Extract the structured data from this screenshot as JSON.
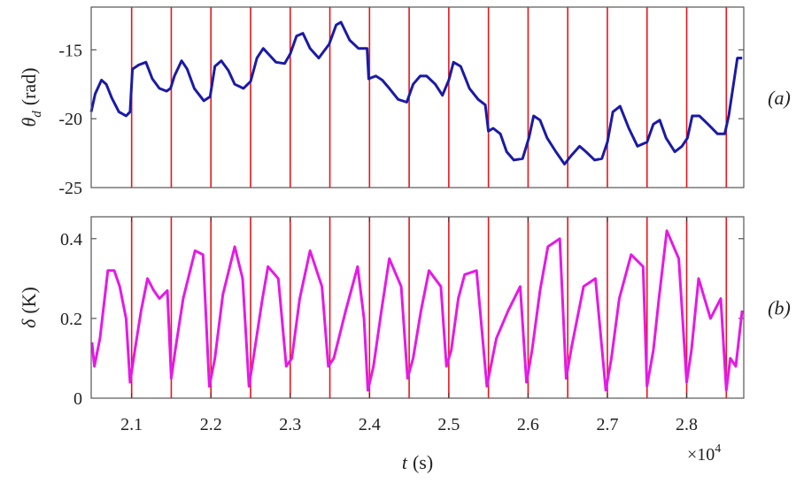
{
  "chart_data": [
    {
      "type": "line",
      "ylabel": {
        "symbol": "θ",
        "subscript": "d",
        "unit": "(rad)"
      },
      "panel_label": "(a)",
      "xlim": [
        2.049,
        2.872
      ],
      "ylim": [
        -25,
        -11.9
      ],
      "yticks": [
        -25,
        -20,
        -15
      ],
      "vlines": {
        "color": "#e8151b",
        "x": [
          2.1,
          2.15,
          2.2,
          2.25,
          2.3,
          2.35,
          2.4,
          2.45,
          2.5,
          2.55,
          2.6,
          2.65,
          2.7,
          2.75,
          2.8,
          2.85
        ]
      },
      "series": [
        {
          "color": "#1a1aa8",
          "x": [
            2.049,
            2.054,
            2.062,
            2.068,
            2.075,
            2.084,
            2.093,
            2.098,
            2.101,
            2.109,
            2.118,
            2.126,
            2.135,
            2.144,
            2.149,
            2.154,
            2.163,
            2.17,
            2.179,
            2.191,
            2.199,
            2.205,
            2.213,
            2.222,
            2.23,
            2.241,
            2.25,
            2.258,
            2.266,
            2.274,
            2.282,
            2.293,
            2.3,
            2.308,
            2.316,
            2.325,
            2.336,
            2.349,
            2.358,
            2.364,
            2.375,
            2.386,
            2.397,
            2.399,
            2.408,
            2.416,
            2.425,
            2.436,
            2.447,
            2.455,
            2.464,
            2.472,
            2.483,
            2.492,
            2.5,
            2.506,
            2.515,
            2.526,
            2.537,
            2.546,
            2.55,
            2.556,
            2.565,
            2.573,
            2.582,
            2.593,
            2.601,
            2.607,
            2.615,
            2.624,
            2.635,
            2.646,
            2.654,
            2.665,
            2.673,
            2.684,
            2.693,
            2.7,
            2.707,
            2.716,
            2.727,
            2.738,
            2.75,
            2.758,
            2.766,
            2.774,
            2.785,
            2.794,
            2.801,
            2.807,
            2.816,
            2.827,
            2.839,
            2.848,
            2.853,
            2.859,
            2.864,
            2.87
          ],
          "values": [
            -19.5,
            -18.2,
            -17.2,
            -17.5,
            -18.5,
            -19.5,
            -19.8,
            -19.5,
            -16.4,
            -16.1,
            -15.9,
            -17.1,
            -17.8,
            -18.0,
            -17.8,
            -16.9,
            -15.8,
            -16.4,
            -17.8,
            -18.7,
            -18.4,
            -16.2,
            -15.8,
            -16.5,
            -17.5,
            -17.8,
            -17.3,
            -15.6,
            -14.9,
            -15.4,
            -15.9,
            -16.0,
            -15.3,
            -14.0,
            -13.8,
            -14.9,
            -15.6,
            -14.6,
            -13.2,
            -13.0,
            -14.3,
            -14.9,
            -14.9,
            -17.1,
            -16.9,
            -17.2,
            -17.8,
            -18.6,
            -18.8,
            -17.5,
            -16.9,
            -16.9,
            -17.5,
            -18.3,
            -17.2,
            -15.9,
            -16.2,
            -17.8,
            -18.6,
            -19.0,
            -20.9,
            -20.7,
            -21.1,
            -22.4,
            -23.0,
            -22.9,
            -21.4,
            -19.8,
            -20.1,
            -21.4,
            -22.4,
            -23.3,
            -22.7,
            -22.0,
            -22.4,
            -23.0,
            -22.9,
            -21.7,
            -19.5,
            -19.1,
            -20.7,
            -22.0,
            -21.7,
            -20.4,
            -20.1,
            -21.4,
            -22.4,
            -22.0,
            -21.4,
            -19.8,
            -19.8,
            -20.4,
            -21.1,
            -21.1,
            -19.8,
            -17.5,
            -15.6,
            -15.6
          ]
        }
      ]
    },
    {
      "type": "line",
      "ylabel": {
        "symbol": "δ",
        "unit": "(K)"
      },
      "panel_label": "(b)",
      "xlabel": {
        "symbol": "t",
        "unit": "(s)"
      },
      "x_multiplier": {
        "base": "×10",
        "exponent": "4"
      },
      "xlim": [
        2.049,
        2.872
      ],
      "xticks": [
        2.1,
        2.2,
        2.3,
        2.4,
        2.5,
        2.6,
        2.7,
        2.8
      ],
      "ylim": [
        0,
        0.455
      ],
      "yticks": [
        0,
        0.2,
        0.4
      ],
      "vlines": {
        "color": "#e8151b",
        "x": [
          2.1,
          2.15,
          2.2,
          2.25,
          2.3,
          2.35,
          2.4,
          2.45,
          2.5,
          2.55,
          2.6,
          2.65,
          2.7,
          2.75,
          2.8,
          2.85
        ]
      },
      "series": [
        {
          "color": "#e619e6",
          "x": [
            2.05,
            2.053,
            2.06,
            2.07,
            2.078,
            2.085,
            2.093,
            2.098,
            2.104,
            2.112,
            2.12,
            2.128,
            2.135,
            2.145,
            2.15,
            2.155,
            2.165,
            2.18,
            2.19,
            2.198,
            2.205,
            2.215,
            2.23,
            2.24,
            2.248,
            2.255,
            2.265,
            2.272,
            2.285,
            2.295,
            2.302,
            2.312,
            2.325,
            2.34,
            2.348,
            2.355,
            2.37,
            2.385,
            2.393,
            2.398,
            2.405,
            2.415,
            2.425,
            2.44,
            2.448,
            2.455,
            2.465,
            2.475,
            2.49,
            2.497,
            2.503,
            2.512,
            2.52,
            2.535,
            2.548,
            2.555,
            2.56,
            2.575,
            2.59,
            2.598,
            2.605,
            2.615,
            2.625,
            2.64,
            2.648,
            2.655,
            2.67,
            2.685,
            2.698,
            2.705,
            2.715,
            2.73,
            2.745,
            2.75,
            2.758,
            2.765,
            2.775,
            2.79,
            2.8,
            2.806,
            2.815,
            2.83,
            2.843,
            2.85,
            2.855,
            2.862,
            2.87
          ],
          "values": [
            0.14,
            0.08,
            0.15,
            0.32,
            0.32,
            0.28,
            0.2,
            0.04,
            0.12,
            0.22,
            0.3,
            0.27,
            0.25,
            0.27,
            0.05,
            0.12,
            0.25,
            0.37,
            0.36,
            0.03,
            0.1,
            0.26,
            0.38,
            0.3,
            0.03,
            0.12,
            0.25,
            0.33,
            0.3,
            0.08,
            0.1,
            0.25,
            0.37,
            0.28,
            0.08,
            0.1,
            0.22,
            0.33,
            0.2,
            0.02,
            0.08,
            0.22,
            0.35,
            0.28,
            0.05,
            0.1,
            0.22,
            0.32,
            0.28,
            0.08,
            0.12,
            0.25,
            0.31,
            0.32,
            0.03,
            0.1,
            0.15,
            0.22,
            0.28,
            0.04,
            0.12,
            0.27,
            0.38,
            0.4,
            0.05,
            0.13,
            0.28,
            0.3,
            0.02,
            0.1,
            0.25,
            0.36,
            0.33,
            0.03,
            0.12,
            0.25,
            0.42,
            0.35,
            0.04,
            0.12,
            0.3,
            0.2,
            0.25,
            0.02,
            0.1,
            0.08,
            0.22
          ]
        }
      ]
    }
  ]
}
